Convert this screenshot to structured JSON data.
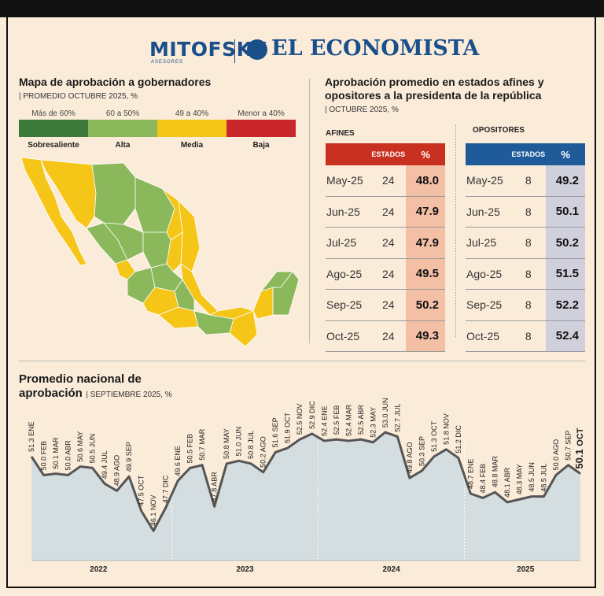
{
  "header": {
    "logo_left": "MITOFSKY",
    "logo_left_tagline": "ASESORES",
    "logo_right": "EL ECONOMISTA"
  },
  "map_section": {
    "title": "Mapa de aprobación a gobernadores",
    "subtitle": "PROMEDIO OCTUBRE 2025, %",
    "legend": [
      {
        "range": "Más de 60%",
        "label": "Sobresaliente",
        "color": "#3c7a3a"
      },
      {
        "range": "60 a 50%",
        "label": "Alta",
        "color": "#8ab85a"
      },
      {
        "range": "49 a 40%",
        "label": "Media",
        "color": "#f5c518"
      },
      {
        "range": "Menor a 40%",
        "label": "Baja",
        "color": "#c8262a"
      }
    ]
  },
  "tables_section": {
    "title": "Aprobación promedio en estados afines y opositores a la presidenta de la república",
    "subtitle": "OCTUBRE 2025, %",
    "afines": {
      "label": "AFINES",
      "col_estados": "ESTADOS",
      "col_pct": "%",
      "color": "#c8301f",
      "pct_bg": "#f3bfa5",
      "rows": [
        {
          "m": "May-25",
          "e": "24",
          "p": "48.0"
        },
        {
          "m": "Jun-25",
          "e": "24",
          "p": "47.9"
        },
        {
          "m": "Jul-25",
          "e": "24",
          "p": "47.9"
        },
        {
          "m": "Ago-25",
          "e": "24",
          "p": "49.5"
        },
        {
          "m": "Sep-25",
          "e": "24",
          "p": "50.2"
        },
        {
          "m": "Oct-25",
          "e": "24",
          "p": "49.3"
        }
      ]
    },
    "opositores": {
      "label": "OPOSITORES",
      "col_estados": "ESTADOS",
      "col_pct": "%",
      "color": "#1f5b99",
      "pct_bg": "#cfd0db",
      "rows": [
        {
          "m": "May-25",
          "e": "8",
          "p": "49.2"
        },
        {
          "m": "Jun-25",
          "e": "8",
          "p": "50.1"
        },
        {
          "m": "Jul-25",
          "e": "8",
          "p": "50.2"
        },
        {
          "m": "Ago-25",
          "e": "8",
          "p": "51.5"
        },
        {
          "m": "Sep-25",
          "e": "8",
          "p": "52.2"
        },
        {
          "m": "Oct-25",
          "e": "8",
          "p": "52.4"
        }
      ]
    }
  },
  "line_section": {
    "title_line1": "Promedio nacional de",
    "title_line2": "aprobación",
    "subtitle": "SEPTIEMBRE 2025, %"
  },
  "chart_data": {
    "type": "area",
    "title": "Promedio nacional de aprobación",
    "subtitle": "SEPTIEMBRE 2025, %",
    "year_labels": [
      "2022",
      "2023",
      "2024",
      "2025"
    ],
    "x": [
      "ENE",
      "FEB",
      "MAR",
      "ABR",
      "MAY",
      "JUN",
      "JUL",
      "AGO",
      "SEP",
      "OCT",
      "NOV",
      "DIC",
      "ENE",
      "FEB",
      "MAR",
      "ABR",
      "MAY",
      "JUN",
      "JUL",
      "AGO",
      "SEP",
      "OCT",
      "NOV",
      "DIC",
      "ENE",
      "FEB",
      "MAR",
      "ABR",
      "MAY",
      "JUN",
      "JUL",
      "AGO",
      "SEP",
      "OCT",
      "NOV",
      "DIC",
      "ENE",
      "FEB",
      "MAR",
      "ABR",
      "MAY",
      "JUN",
      "JUL",
      "AGO",
      "SEP",
      "OCT"
    ],
    "values": [
      51.3,
      50.0,
      50.1,
      50.0,
      50.6,
      50.5,
      49.4,
      48.9,
      49.9,
      47.5,
      46.1,
      47.7,
      49.6,
      50.5,
      50.7,
      47.8,
      50.8,
      51.0,
      50.8,
      50.2,
      51.6,
      51.9,
      52.5,
      52.9,
      52.4,
      52.5,
      52.4,
      52.5,
      52.3,
      53.0,
      52.7,
      49.8,
      50.3,
      51.3,
      51.8,
      51.2,
      48.7,
      48.4,
      48.8,
      48.1,
      48.3,
      48.5,
      48.5,
      50.0,
      50.7,
      50.1
    ],
    "highlight_last": true,
    "line_color": "#555555",
    "fill_color": "#d4dde0"
  }
}
